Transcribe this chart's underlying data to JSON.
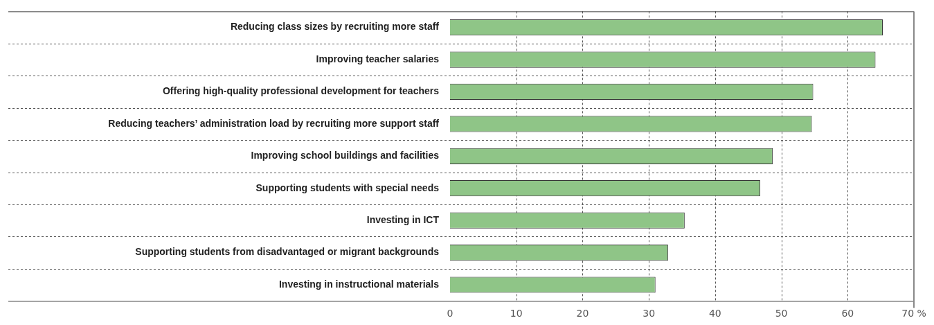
{
  "chart_data": {
    "type": "bar",
    "orientation": "horizontal",
    "categories": [
      "Reducing class sizes by recruiting more staff",
      "Improving teacher salaries",
      "Offering high-quality professional development for teachers",
      "Reducing teachers’ administration load by recruiting more support staff",
      "Improving school buildings and facilities",
      "Supporting students with special needs",
      "Investing in ICT",
      "Supporting students from disadvantaged or migrant backgrounds",
      "Investing in instructional materials"
    ],
    "values": [
      65.3,
      64.2,
      54.8,
      54.6,
      48.7,
      46.8,
      35.4,
      32.9,
      31.0
    ],
    "color": "#8fc587",
    "xlim": [
      0,
      70
    ],
    "xticks": [
      0,
      10,
      20,
      30,
      40,
      50,
      60,
      {
        "value": 70,
        "label": "70 %"
      }
    ],
    "grid": true,
    "legend": false
  }
}
